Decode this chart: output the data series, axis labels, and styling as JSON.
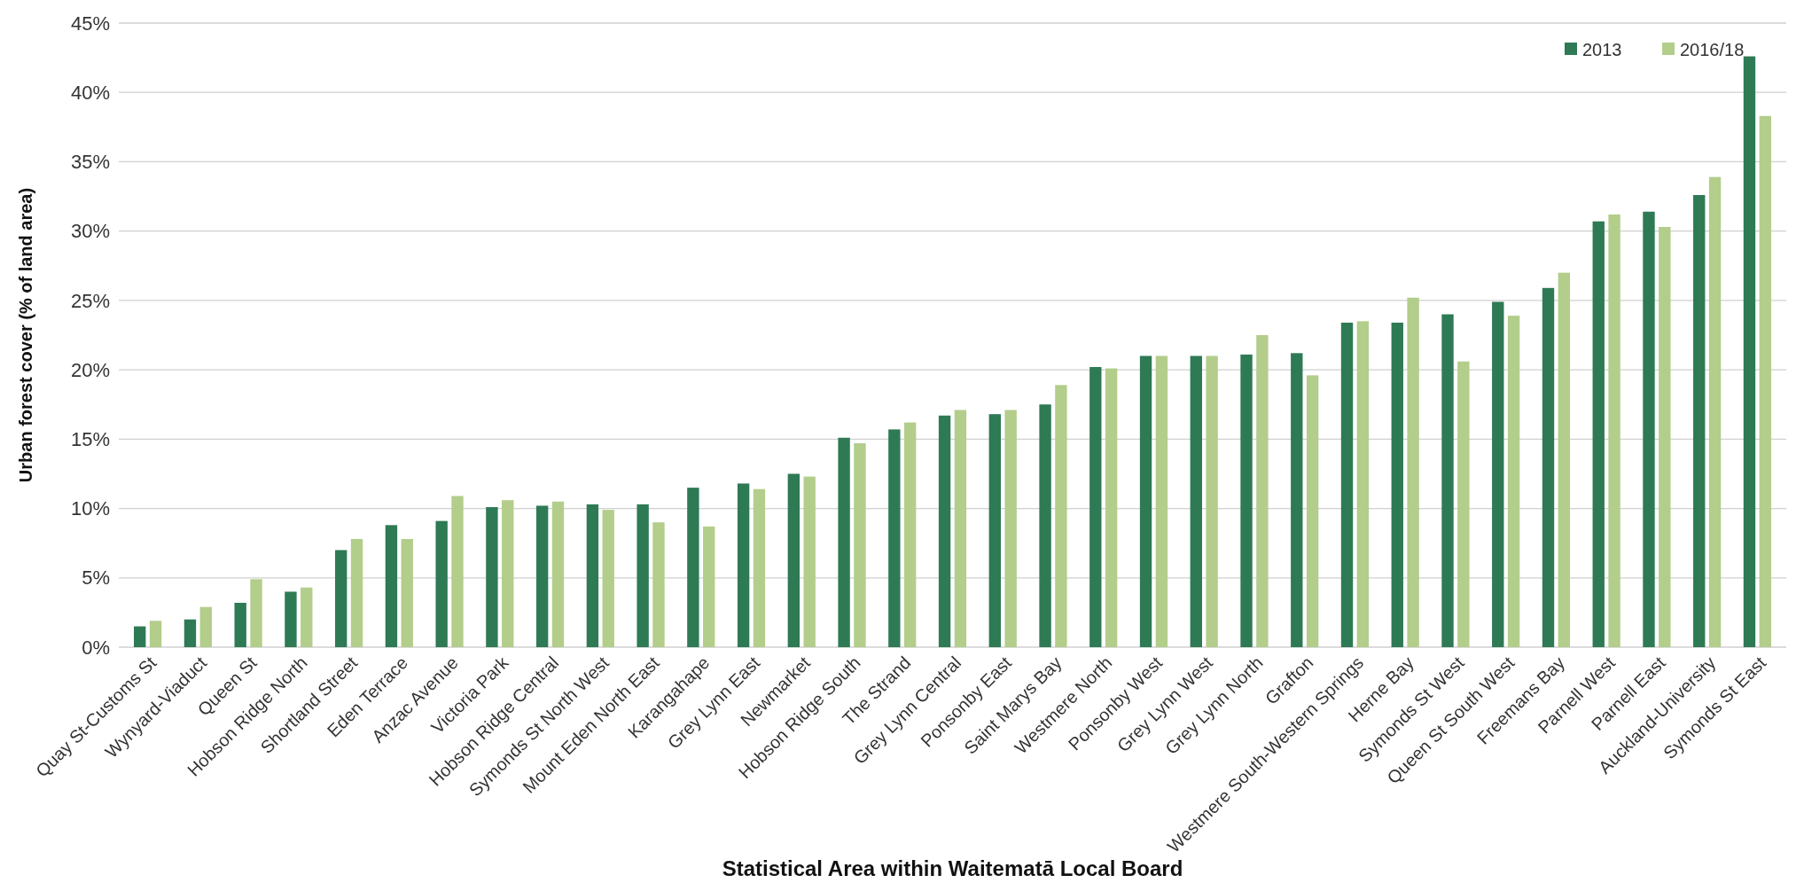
{
  "chart_data": {
    "type": "bar",
    "xlabel": "Statistical Area within Waitematā Local Board",
    "ylabel": "Urban forest cover (% of land area)",
    "categories": [
      "Quay St-Customs St",
      "Wynyard-Viaduct",
      "Queen St",
      "Hobson Ridge North",
      "Shortland Street",
      "Eden Terrace",
      "Anzac Avenue",
      "Victoria Park",
      "Hobson Ridge Central",
      "Symonds St North West",
      "Mount Eden North East",
      "Karangahape",
      "Grey Lynn East",
      "Newmarket",
      "Hobson Ridge South",
      "The Strand",
      "Grey Lynn Central",
      "Ponsonby East",
      "Saint Marys Bay",
      "Westmere North",
      "Ponsonby West",
      "Grey Lynn West",
      "Grey Lynn North",
      "Grafton",
      "Westmere South-Western Springs",
      "Herne Bay",
      "Symonds St West",
      "Queen St South West",
      "Freemans Bay",
      "Parnell West",
      "Parnell East",
      "Auckland-University",
      "Symonds St East"
    ],
    "series": [
      {
        "name": "2013",
        "color": "#2e7a55",
        "values": [
          1.5,
          2.0,
          3.2,
          4.0,
          7.0,
          8.8,
          9.1,
          10.1,
          10.2,
          10.3,
          10.3,
          11.5,
          11.8,
          12.5,
          15.1,
          15.7,
          16.7,
          16.8,
          17.5,
          20.2,
          21.0,
          21.0,
          21.1,
          21.2,
          23.4,
          23.4,
          24.0,
          24.9,
          25.9,
          30.7,
          31.4,
          32.6,
          42.6
        ]
      },
      {
        "name": "2016/18",
        "color": "#b3cd8b",
        "values": [
          1.9,
          2.9,
          4.9,
          4.3,
          7.8,
          7.8,
          10.9,
          10.6,
          10.5,
          9.9,
          9.0,
          8.7,
          11.4,
          12.3,
          14.7,
          16.2,
          17.1,
          17.1,
          18.9,
          20.1,
          21.0,
          21.0,
          22.5,
          19.6,
          23.5,
          25.2,
          20.6,
          23.9,
          27.0,
          31.2,
          30.3,
          33.9,
          38.3
        ]
      }
    ],
    "ylim": [
      0,
      45
    ],
    "yticks": [
      {
        "value": 0,
        "label": "0%"
      },
      {
        "value": 5,
        "label": "5%"
      },
      {
        "value": 10,
        "label": "10%"
      },
      {
        "value": 15,
        "label": "15%"
      },
      {
        "value": 20,
        "label": "20%"
      },
      {
        "value": 25,
        "label": "25%"
      },
      {
        "value": 30,
        "label": "30%"
      },
      {
        "value": 35,
        "label": "35%"
      },
      {
        "value": 40,
        "label": "40%"
      },
      {
        "value": 45,
        "label": "45%"
      }
    ],
    "grid": "y",
    "legend": "top right"
  }
}
